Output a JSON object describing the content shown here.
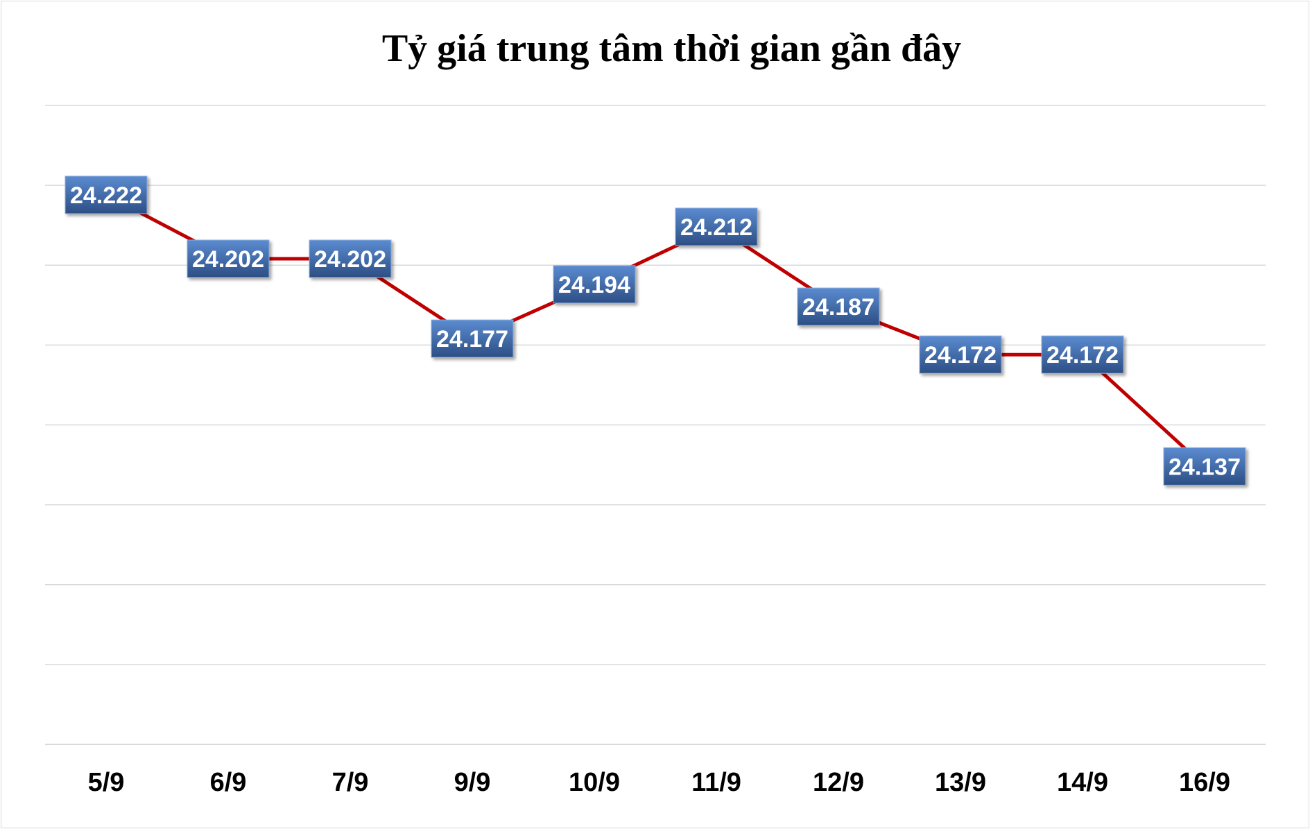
{
  "chart_data": {
    "type": "line",
    "title": "Tỷ giá trung tâm thời gian gần đây",
    "xlabel": "",
    "ylabel": "",
    "categories": [
      "5/9",
      "6/9",
      "7/9",
      "9/9",
      "10/9",
      "11/9",
      "12/9",
      "13/9",
      "14/9",
      "16/9"
    ],
    "values": [
      24222,
      24202,
      24202,
      24177,
      24194,
      24212,
      24187,
      24172,
      24172,
      24137
    ],
    "data_labels": [
      "24.222",
      "24.202",
      "24.202",
      "24.177",
      "24.194",
      "24.212",
      "24.187",
      "24.172",
      "24.172",
      "24.137"
    ],
    "ylim": [
      24050,
      24250
    ],
    "grid": true,
    "legend": "none",
    "colors": {
      "line": "#c00000",
      "label_bg_top": "#4f7fc0",
      "label_bg_bottom": "#2d4f86",
      "gridline": "#d9d9d9"
    }
  }
}
